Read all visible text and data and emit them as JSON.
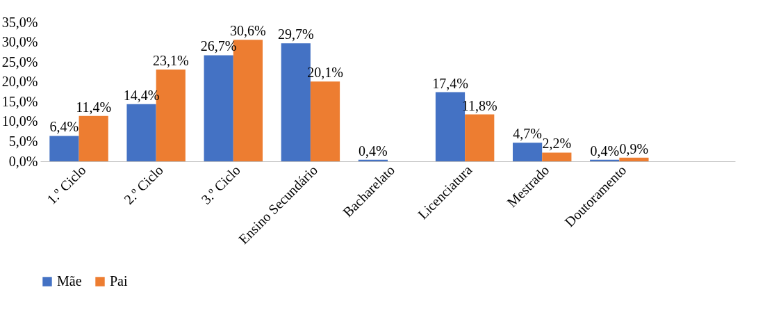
{
  "chart_data": {
    "type": "bar",
    "categories": [
      "1.º Ciclo",
      "2.º Ciclo",
      "3.º Ciclo",
      "Ensino Secundário",
      "Bacharelato",
      "Licenciatura",
      "Mestrado",
      "Doutoramento",
      null
    ],
    "series": [
      {
        "name": "Mãe",
        "color": "#4472c4",
        "values": [
          6.4,
          14.4,
          26.7,
          29.7,
          0.4,
          17.4,
          4.7,
          0.4,
          null
        ],
        "value_labels": [
          "6,4%",
          "14,4%",
          "26,7%",
          "29,7%",
          "0,4%",
          "17,4%",
          "4,7%",
          "0,4%",
          null
        ]
      },
      {
        "name": "Pai",
        "color": "#ed7d31",
        "values": [
          11.4,
          23.1,
          30.6,
          20.1,
          null,
          11.8,
          2.2,
          0.9,
          null
        ],
        "value_labels": [
          "11,4%",
          "23,1%",
          "30,6%",
          "20,1%",
          null,
          "11,8%",
          "2,2%",
          "0,9%",
          null
        ]
      }
    ],
    "ylim": [
      0,
      35
    ],
    "yticks": [
      {
        "value": 0,
        "label": "0,0%"
      },
      {
        "value": 5,
        "label": "5,0%"
      },
      {
        "value": 10,
        "label": "10,0%"
      },
      {
        "value": 15,
        "label": "15,0%"
      },
      {
        "value": 20,
        "label": "20,0%"
      },
      {
        "value": 25,
        "label": "25,0%"
      },
      {
        "value": 30,
        "label": "30,0%"
      },
      {
        "value": 35,
        "label": "35,0%"
      }
    ],
    "grid": false,
    "legend": "bottom"
  }
}
